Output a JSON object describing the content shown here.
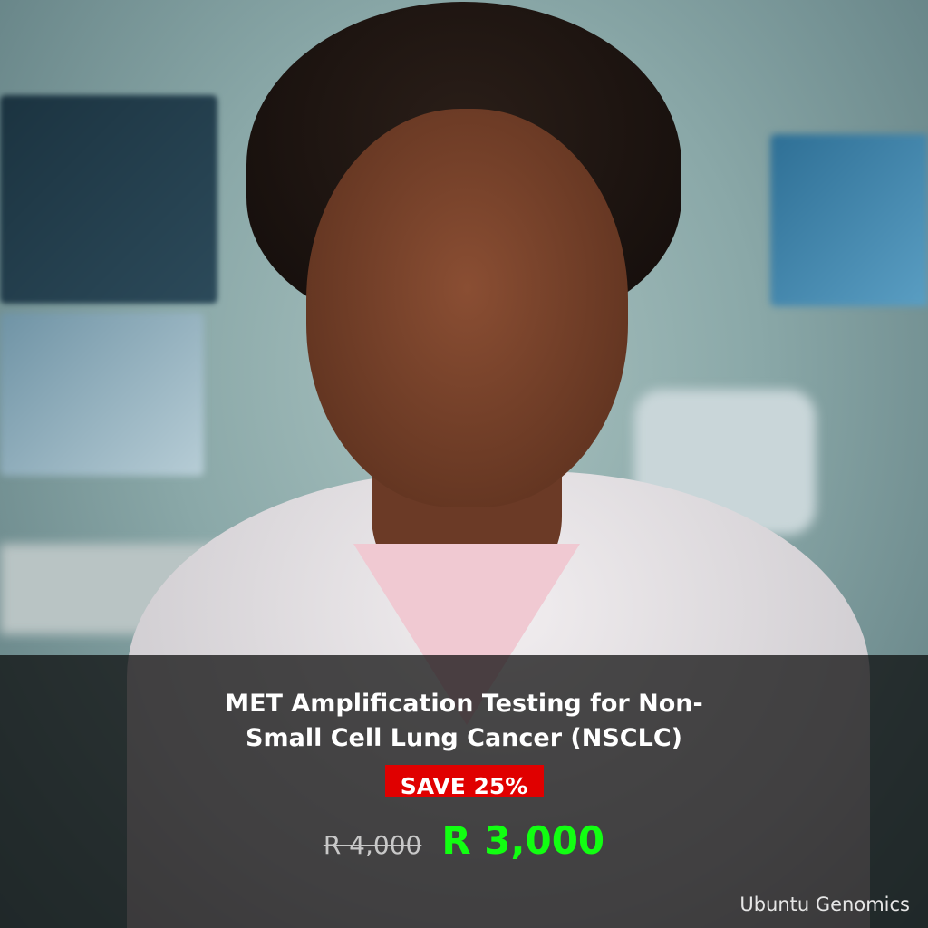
{
  "promo": {
    "title_line1": "MET Amplification Testing for Non-",
    "title_line2": "Small Cell Lung Cancer (NSCLC)",
    "badge": "SAVE 25%",
    "original_price": "R 4,000",
    "sale_price": "R 3,000",
    "brand": "Ubuntu Genomics"
  },
  "colors": {
    "badge_bg": "#e00000",
    "sale_price": "#11ff11",
    "overlay": "rgba(8,8,8,0.72)"
  }
}
